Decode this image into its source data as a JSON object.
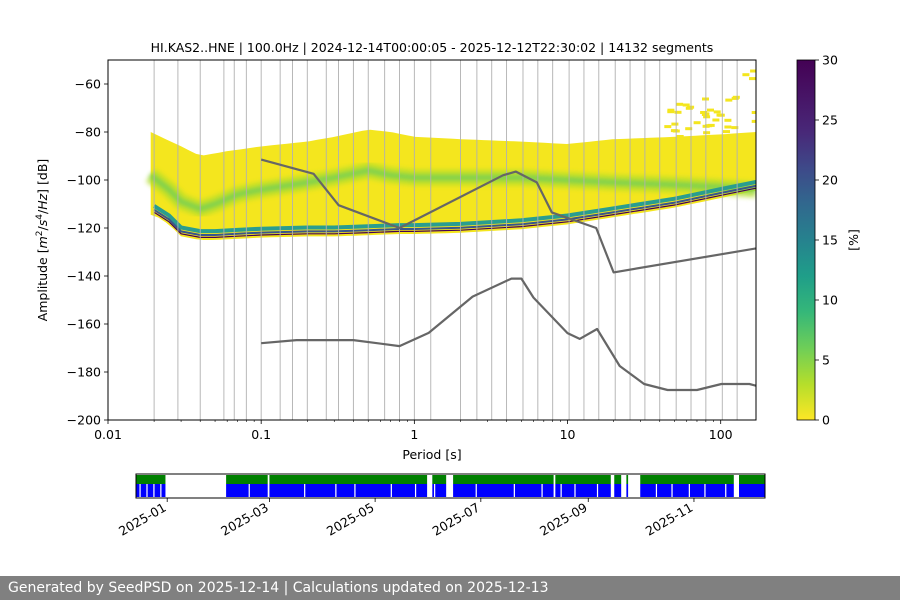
{
  "chart_data": [
    {
      "type": "heatmap",
      "title": "HI.KAS2..HNE | 100.0Hz | 2024-12-14T00:00:05 - 2025-12-12T22:30:02 | 14132 segments",
      "xlabel": "Period [s]",
      "ylabel_parts": [
        "Amplitude [",
        "m",
        "2",
        "/",
        "s",
        "4",
        "/",
        "Hz",
        "] [dB]"
      ],
      "xscale": "log",
      "xlim": [
        0.01,
        170
      ],
      "ylim": [
        -200,
        -50
      ],
      "xticks": [
        {
          "v": 0.01,
          "label": "0.01"
        },
        {
          "v": 0.1,
          "label": "0.1"
        },
        {
          "v": 1,
          "label": "1"
        },
        {
          "v": 10,
          "label": "10"
        },
        {
          "v": 100,
          "label": "100"
        }
      ],
      "yticks": [
        -200,
        -180,
        -160,
        -140,
        -120,
        -100,
        -80,
        -60
      ],
      "grid": "vertical lines at spectral periods",
      "grid_periods": [
        0.02,
        0.0286,
        0.04,
        0.0571,
        0.0667,
        0.08,
        0.1,
        0.133,
        0.16,
        0.2,
        0.266,
        0.32,
        0.4,
        0.5,
        0.64,
        0.8,
        1.0,
        1.28,
        2.0,
        2.56,
        3.2,
        4.0,
        5.12,
        6.4,
        8.0,
        10.24,
        12.8,
        16.0,
        20.48,
        25.6,
        32.0,
        40.0,
        51.2,
        64.0,
        80.0,
        102.4,
        128.0
      ],
      "colorbar": {
        "label": "[%]",
        "min": 0,
        "max": 30,
        "ticks": [
          0,
          5,
          10,
          15,
          20,
          25,
          30
        ],
        "colormap": "viridis_r"
      },
      "nhnm": {
        "name": "NHNM",
        "periods": [
          0.1,
          0.22,
          0.32,
          0.8,
          3.8,
          4.6,
          6.3,
          7.9,
          15.4,
          20,
          170
        ],
        "values": [
          -91.5,
          -97.4,
          -110.5,
          -120,
          -98,
          -96.5,
          -101,
          -113.5,
          -120,
          -138.5,
          -128.5
        ]
      },
      "nlnm": {
        "name": "NLNM",
        "periods": [
          0.1,
          0.17,
          0.4,
          0.8,
          1.24,
          2.4,
          4.3,
          5.0,
          6.0,
          10.0,
          12.0,
          15.6,
          21.9,
          31.6,
          45,
          70,
          101,
          154,
          170
        ],
        "values": [
          -168,
          -166.7,
          -166.7,
          -169.2,
          -163.7,
          -148.6,
          -141.1,
          -141.1,
          -149,
          -163.8,
          -166.2,
          -162.1,
          -177.5,
          -185,
          -187.5,
          -187.5,
          -185,
          -185,
          -185.7
        ]
      },
      "distribution_mode": {
        "periods": [
          0.02,
          0.025,
          0.03,
          0.04,
          0.05,
          0.07,
          0.1,
          0.2,
          0.3,
          0.5,
          0.8,
          1,
          2,
          5,
          10,
          20,
          50,
          100,
          170
        ],
        "values": [
          -112,
          -116,
          -121,
          -122.5,
          -122.5,
          -122,
          -121.5,
          -121,
          -121,
          -120.5,
          -120,
          -120,
          -119.5,
          -118,
          -116,
          -113,
          -109,
          -105,
          -102
        ]
      },
      "distribution_upper": {
        "periods": [
          0.019,
          0.03,
          0.04,
          0.06,
          0.1,
          0.2,
          0.3,
          0.5,
          0.7,
          1,
          2,
          5,
          10,
          20,
          50,
          100,
          170
        ],
        "values": [
          -80,
          -86,
          -90,
          -88,
          -86,
          -84,
          -82,
          -79,
          -80,
          -82,
          -83,
          -84,
          -85,
          -83,
          -82,
          -81,
          -80
        ]
      },
      "distribution_center": {
        "periods": [
          0.019,
          0.025,
          0.03,
          0.04,
          0.05,
          0.07,
          0.1,
          0.2,
          0.3,
          0.5,
          0.7,
          1,
          2,
          5,
          10,
          20,
          50,
          100,
          170
        ],
        "values": [
          -98,
          -104,
          -109,
          -112,
          -110,
          -106,
          -104,
          -101,
          -99,
          -96,
          -98,
          -99,
          -99,
          -99,
          -100,
          -101,
          -102,
          -103,
          -104
        ]
      },
      "sparse_outliers_note": "scattered high-amplitude bins above -80 dB at periods greater than 40 s"
    },
    {
      "type": "timeline",
      "xticks": [
        "2025-01",
        "2025-03",
        "2025-05",
        "2025-07",
        "2025-09",
        "2025-11"
      ],
      "tick_dates": [
        "2025-01-01",
        "2025-03-01",
        "2025-05-01",
        "2025-07-01",
        "2025-09-01",
        "2025-11-01"
      ],
      "range": [
        "2024-12-14",
        "2025-12-12"
      ],
      "series": [
        {
          "color": "#008000",
          "kind": "data availability"
        },
        {
          "color": "#0000ff",
          "kind": "psd coverage"
        }
      ],
      "segments": [
        [
          "2024-12-14",
          "2024-12-31"
        ],
        [
          "2025-02-04",
          "2025-02-28"
        ],
        [
          "2025-03-01",
          "2025-05-31"
        ],
        [
          "2025-06-03",
          "2025-06-11"
        ],
        [
          "2025-06-15",
          "2025-08-12"
        ],
        [
          "2025-08-13",
          "2025-09-14"
        ],
        [
          "2025-09-16",
          "2025-09-20"
        ],
        [
          "2025-09-23",
          "2025-09-24"
        ],
        [
          "2025-10-01",
          "2025-11-24"
        ],
        [
          "2025-11-27",
          "2025-12-12"
        ]
      ],
      "gaps_in_blue": [
        "2024-12-16",
        "2024-12-20",
        "2024-12-24",
        "2024-12-28",
        "2025-02-17",
        "2025-03-21",
        "2025-04-08",
        "2025-04-19",
        "2025-05-10",
        "2025-05-24",
        "2025-06-04",
        "2025-06-28",
        "2025-07-20",
        "2025-08-05",
        "2025-08-16",
        "2025-08-24",
        "2025-09-06",
        "2025-10-10",
        "2025-10-19",
        "2025-10-29",
        "2025-11-07",
        "2025-11-19"
      ]
    }
  ],
  "footer": {
    "text": "Generated by SeedPSD on 2025-12-14 | Calculations updated on 2025-12-13"
  }
}
